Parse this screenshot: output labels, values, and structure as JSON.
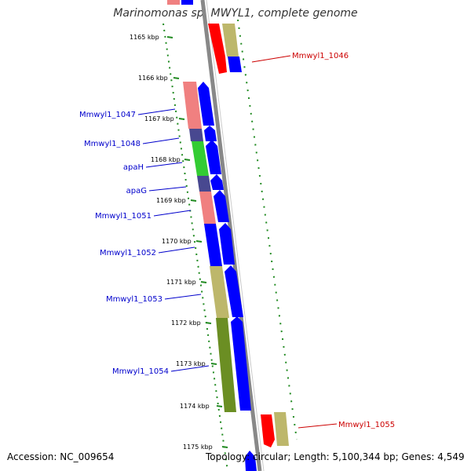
{
  "title": "Marinomonas sp. MWYL1, complete genome",
  "footer": {
    "accession": "Accession: NC_009654",
    "summary": "Topology: circular; Length: 5,100,344 bp; Genes: 4,549"
  },
  "colors": {
    "background": "#ffffff",
    "backbone": "#888888",
    "ruler_dash": "#228b22",
    "cds_forward": "#0000ff",
    "cds_reverse": "#ff0000",
    "label_blue": "#0000cc",
    "label_red": "#cc0000",
    "func_pink": "#f08080",
    "func_khaki": "#bdb76b",
    "func_green": "#33cc33",
    "func_slate": "#484890",
    "func_olive": "#6b8e23"
  },
  "ticks": [
    "1165 kbp",
    "1166 kbp",
    "1167 kbp",
    "1168 kbp",
    "1169 kbp",
    "1170 kbp",
    "1171 kbp",
    "1172 kbp",
    "1173 kbp",
    "1174 kbp",
    "1175 kbp"
  ],
  "genes": [
    {
      "name": "Mmwyl1_1046",
      "strand": "reverse",
      "color_key": "label_red"
    },
    {
      "name": "Mmwyl1_1047",
      "strand": "forward",
      "color_key": "label_blue"
    },
    {
      "name": "Mmwyl1_1048",
      "strand": "forward",
      "color_key": "label_blue"
    },
    {
      "name": "apaH",
      "strand": "forward",
      "color_key": "label_blue"
    },
    {
      "name": "apaG",
      "strand": "forward",
      "color_key": "label_blue"
    },
    {
      "name": "Mmwyl1_1051",
      "strand": "forward",
      "color_key": "label_blue"
    },
    {
      "name": "Mmwyl1_1052",
      "strand": "forward",
      "color_key": "label_blue"
    },
    {
      "name": "Mmwyl1_1053",
      "strand": "forward",
      "color_key": "label_blue"
    },
    {
      "name": "Mmwyl1_1054",
      "strand": "forward",
      "color_key": "label_blue"
    },
    {
      "name": "Mmwyl1_1055",
      "strand": "reverse",
      "color_key": "label_red"
    }
  ]
}
